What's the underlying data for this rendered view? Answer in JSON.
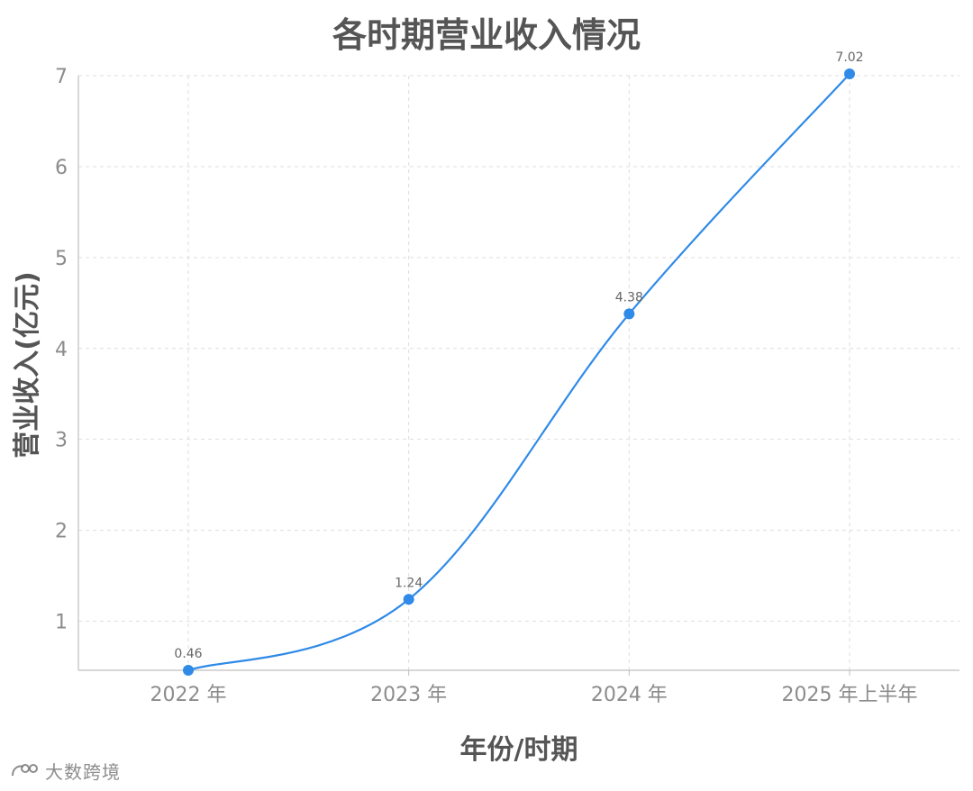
{
  "chart_data": {
    "type": "line",
    "title": "各时期营业收入情况",
    "xlabel": "年份/时期",
    "ylabel": "营业收入(亿元)",
    "categories": [
      "2022 年",
      "2023 年",
      "2024 年",
      "2025 年上半年"
    ],
    "series": [
      {
        "values": [
          0.46,
          1.24,
          4.38,
          7.02
        ],
        "color": "#2f8ae8",
        "data_labels": [
          "0.46",
          "1.24",
          "4.38",
          "7.02"
        ]
      }
    ],
    "ylim": [
      0.46,
      7
    ],
    "yticks": [
      1,
      2,
      3,
      4,
      5,
      6,
      7
    ],
    "grid": true,
    "legend": "none"
  },
  "watermark": {
    "text": "大数跨境"
  },
  "colors": {
    "line": "#2f8ae8",
    "grid": "#dddddd",
    "axis": "#bfbfbf"
  }
}
